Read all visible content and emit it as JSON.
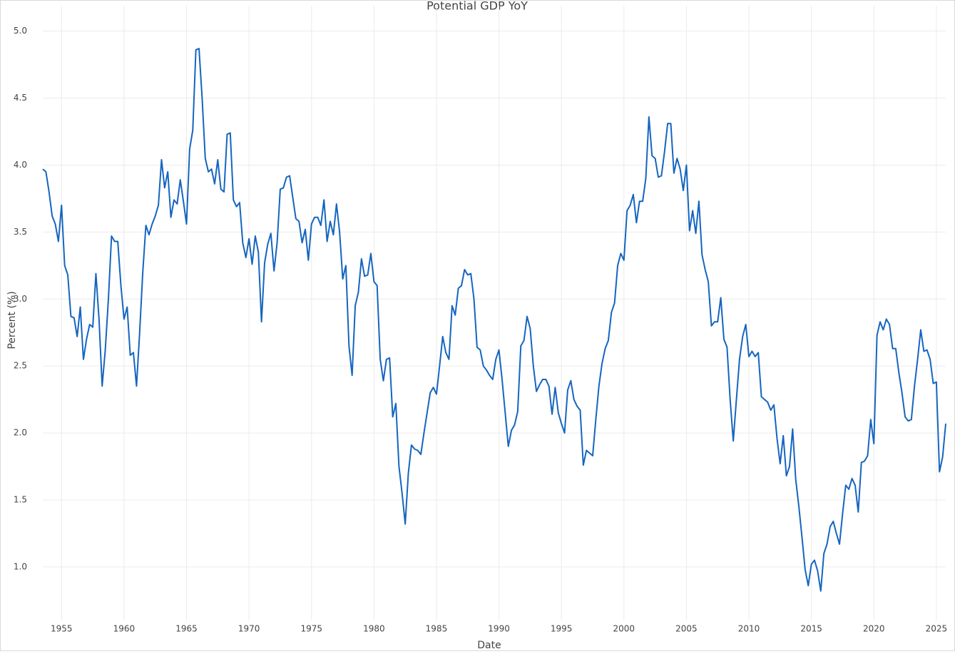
{
  "chart_data": {
    "type": "line",
    "title": "Potential GDP YoY",
    "x_label": "Date",
    "y_label": "Percent (%)",
    "color": "#1565c0",
    "grid": true,
    "xlim": [
      1953.5,
      2025.75
    ],
    "xticks": [
      1955,
      1960,
      1965,
      1970,
      1975,
      1980,
      1985,
      1990,
      1995,
      2000,
      2005,
      2010,
      2015,
      2020,
      2025
    ],
    "ylim": [
      0.6,
      5.19
    ],
    "yticks": [
      {
        "value": 1,
        "label": "1.0"
      },
      1.5,
      {
        "value": 2,
        "label": "2.0"
      },
      2.5,
      {
        "value": 3,
        "label": "3.0"
      },
      3.5,
      {
        "value": 4,
        "label": "4.0"
      },
      4.5,
      {
        "value": 5,
        "label": "5.0"
      }
    ],
    "x": [
      1953.5,
      1953.75,
      1954,
      1954.25,
      1954.5,
      1954.75,
      1955,
      1955.25,
      1955.5,
      1955.75,
      1956,
      1956.25,
      1956.5,
      1956.75,
      1957,
      1957.25,
      1957.5,
      1957.75,
      1958,
      1958.25,
      1958.5,
      1958.75,
      1959,
      1959.25,
      1959.5,
      1959.75,
      1960,
      1960.25,
      1960.5,
      1960.75,
      1961,
      1961.25,
      1961.5,
      1961.75,
      1962,
      1962.25,
      1962.5,
      1962.75,
      1963,
      1963.25,
      1963.5,
      1963.75,
      1964,
      1964.25,
      1964.5,
      1964.75,
      1965,
      1965.25,
      1965.5,
      1965.75,
      1966,
      1966.25,
      1966.5,
      1966.75,
      1967,
      1967.25,
      1967.5,
      1967.75,
      1968,
      1968.25,
      1968.5,
      1968.75,
      1969,
      1969.25,
      1969.5,
      1969.75,
      1970,
      1970.25,
      1970.5,
      1970.75,
      1971,
      1971.25,
      1971.5,
      1971.75,
      1972,
      1972.25,
      1972.5,
      1972.75,
      1973,
      1973.25,
      1973.5,
      1973.75,
      1974,
      1974.25,
      1974.5,
      1974.75,
      1975,
      1975.25,
      1975.5,
      1975.75,
      1976,
      1976.25,
      1976.5,
      1976.75,
      1977,
      1977.25,
      1977.5,
      1977.75,
      1978,
      1978.25,
      1978.5,
      1978.75,
      1979,
      1979.25,
      1979.5,
      1979.75,
      1980,
      1980.25,
      1980.5,
      1980.75,
      1981,
      1981.25,
      1981.5,
      1981.75,
      1982,
      1982.25,
      1982.5,
      1982.75,
      1983,
      1983.25,
      1983.5,
      1983.75,
      1984,
      1984.25,
      1984.5,
      1984.75,
      1985,
      1985.25,
      1985.5,
      1985.75,
      1986,
      1986.25,
      1986.5,
      1986.75,
      1987,
      1987.25,
      1987.5,
      1987.75,
      1988,
      1988.25,
      1988.5,
      1988.75,
      1989,
      1989.25,
      1989.5,
      1989.75,
      1990,
      1990.25,
      1990.5,
      1990.75,
      1991,
      1991.25,
      1991.5,
      1991.75,
      1992,
      1992.25,
      1992.5,
      1992.75,
      1993,
      1993.25,
      1993.5,
      1993.75,
      1994,
      1994.25,
      1994.5,
      1994.75,
      1995,
      1995.25,
      1995.5,
      1995.75,
      1996,
      1996.25,
      1996.5,
      1996.75,
      1997,
      1997.25,
      1997.5,
      1997.75,
      1998,
      1998.25,
      1998.5,
      1998.75,
      1999,
      1999.25,
      1999.5,
      1999.75,
      2000,
      2000.25,
      2000.5,
      2000.75,
      2001,
      2001.25,
      2001.5,
      2001.75,
      2002,
      2002.25,
      2002.5,
      2002.75,
      2003,
      2003.25,
      2003.5,
      2003.75,
      2004,
      2004.25,
      2004.5,
      2004.75,
      2005,
      2005.25,
      2005.5,
      2005.75,
      2006,
      2006.25,
      2006.5,
      2006.75,
      2007,
      2007.25,
      2007.5,
      2007.75,
      2008,
      2008.25,
      2008.5,
      2008.75,
      2009,
      2009.25,
      2009.5,
      2009.75,
      2010,
      2010.25,
      2010.5,
      2010.75,
      2011,
      2011.25,
      2011.5,
      2011.75,
      2012,
      2012.25,
      2012.5,
      2012.75,
      2013,
      2013.25,
      2013.5,
      2013.75,
      2014,
      2014.25,
      2014.5,
      2014.75,
      2015,
      2015.25,
      2015.5,
      2015.75,
      2016,
      2016.25,
      2016.5,
      2016.75,
      2017,
      2017.25,
      2017.5,
      2017.75,
      2018,
      2018.25,
      2018.5,
      2018.75,
      2019,
      2019.25,
      2019.5,
      2019.75,
      2020,
      2020.25,
      2020.5,
      2020.75,
      2021,
      2021.25,
      2021.5,
      2021.75,
      2022,
      2022.25,
      2022.5,
      2022.75,
      2023,
      2023.25,
      2023.5,
      2023.75,
      2024,
      2024.25,
      2024.5,
      2024.75,
      2025,
      2025.25,
      2025.5,
      2025.75
    ],
    "values": [
      3.97,
      3.95,
      3.8,
      3.62,
      3.56,
      3.43,
      3.7,
      3.25,
      3.18,
      2.87,
      2.86,
      2.72,
      2.94,
      2.55,
      2.7,
      2.81,
      2.79,
      3.19,
      2.85,
      2.35,
      2.62,
      3.0,
      3.47,
      3.43,
      3.43,
      3.1,
      2.85,
      2.94,
      2.58,
      2.6,
      2.35,
      2.75,
      3.2,
      3.55,
      3.48,
      3.56,
      3.62,
      3.7,
      4.04,
      3.83,
      3.95,
      3.61,
      3.74,
      3.71,
      3.89,
      3.73,
      3.56,
      4.12,
      4.26,
      4.86,
      4.87,
      4.5,
      4.05,
      3.95,
      3.97,
      3.86,
      4.04,
      3.82,
      3.8,
      4.23,
      4.24,
      3.74,
      3.69,
      3.72,
      3.42,
      3.31,
      3.45,
      3.26,
      3.47,
      3.35,
      2.83,
      3.27,
      3.41,
      3.49,
      3.21,
      3.42,
      3.82,
      3.83,
      3.91,
      3.92,
      3.76,
      3.6,
      3.58,
      3.42,
      3.52,
      3.29,
      3.56,
      3.61,
      3.61,
      3.55,
      3.74,
      3.43,
      3.58,
      3.48,
      3.71,
      3.5,
      3.15,
      3.25,
      2.65,
      2.43,
      2.95,
      3.05,
      3.3,
      3.17,
      3.18,
      3.34,
      3.13,
      3.1,
      2.55,
      2.39,
      2.55,
      2.56,
      2.12,
      2.22,
      1.75,
      1.55,
      1.32,
      1.7,
      1.91,
      1.88,
      1.87,
      1.84,
      2.0,
      2.15,
      2.3,
      2.34,
      2.29,
      2.5,
      2.72,
      2.6,
      2.55,
      2.95,
      2.88,
      3.08,
      3.1,
      3.22,
      3.18,
      3.19,
      3.0,
      2.64,
      2.62,
      2.5,
      2.47,
      2.43,
      2.4,
      2.55,
      2.62,
      2.4,
      2.15,
      1.9,
      2.02,
      2.06,
      2.16,
      2.65,
      2.69,
      2.87,
      2.78,
      2.5,
      2.31,
      2.36,
      2.4,
      2.4,
      2.35,
      2.14,
      2.34,
      2.15,
      2.07,
      2.0,
      2.32,
      2.39,
      2.25,
      2.2,
      2.17,
      1.76,
      1.87,
      1.85,
      1.83,
      2.1,
      2.35,
      2.52,
      2.63,
      2.69,
      2.9,
      2.97,
      3.25,
      3.34,
      3.29,
      3.66,
      3.7,
      3.78,
      3.57,
      3.73,
      3.73,
      3.9,
      4.36,
      4.07,
      4.05,
      3.91,
      3.92,
      4.1,
      4.31,
      4.31,
      3.94,
      4.05,
      3.97,
      3.81,
      4.0,
      3.51,
      3.66,
      3.49,
      3.73,
      3.33,
      3.22,
      3.13,
      2.8,
      2.83,
      2.83,
      3.01,
      2.7,
      2.64,
      2.25,
      1.94,
      2.25,
      2.55,
      2.72,
      2.81,
      2.57,
      2.61,
      2.57,
      2.6,
      2.27,
      2.25,
      2.23,
      2.17,
      2.21,
      1.96,
      1.77,
      1.98,
      1.68,
      1.75,
      2.03,
      1.65,
      1.45,
      1.22,
      0.98,
      0.86,
      1.02,
      1.05,
      0.97,
      0.82,
      1.1,
      1.17,
      1.3,
      1.34,
      1.25,
      1.17,
      1.4,
      1.61,
      1.58,
      1.66,
      1.61,
      1.41,
      1.78,
      1.79,
      1.83,
      2.1,
      1.92,
      2.73,
      2.83,
      2.77,
      2.85,
      2.81,
      2.63,
      2.63,
      2.45,
      2.3,
      2.12,
      2.09,
      2.1,
      2.35,
      2.55,
      2.77,
      2.61,
      2.62,
      2.55,
      2.37,
      2.38,
      1.71,
      1.82,
      2.07
    ]
  }
}
